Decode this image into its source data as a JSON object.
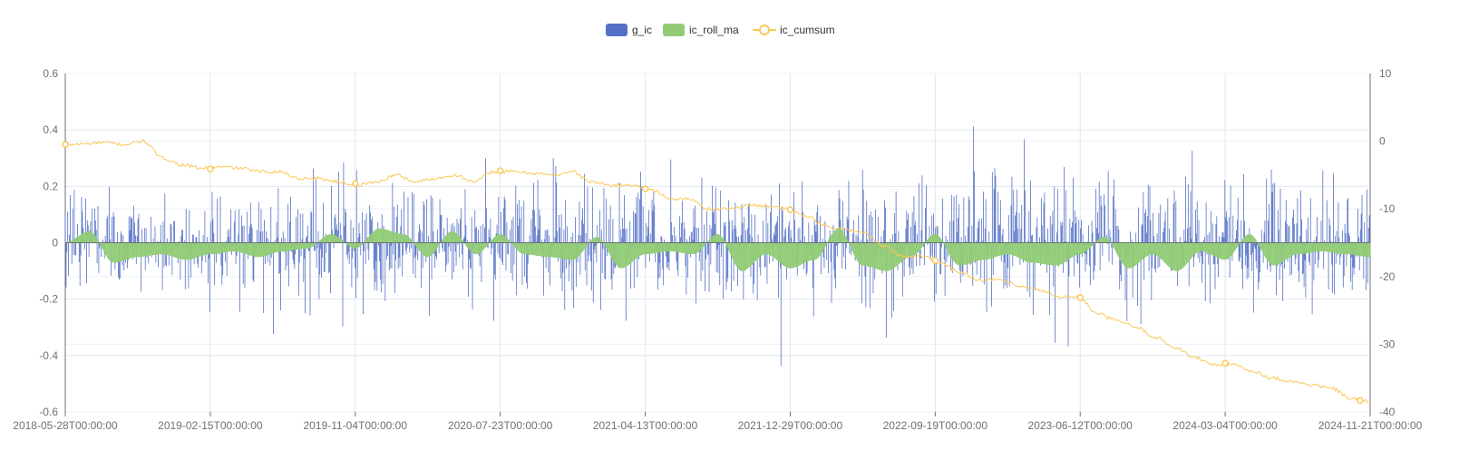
{
  "chart_data": {
    "type": "bar",
    "title": "",
    "xlabel": "",
    "ylabel": "",
    "legend_position": "top-center",
    "ylim_left": [
      -0.6,
      0.6
    ],
    "ylim_right": [
      -40,
      10
    ],
    "y_ticks_left": [
      "0.6",
      "0.4",
      "0.2",
      "0",
      "-0.2",
      "-0.4",
      "-0.6"
    ],
    "y_ticks_right": [
      "10",
      "0",
      "-10",
      "-20",
      "-30",
      "-40"
    ],
    "x_ticks": [
      "2018-05-28T00:00:00",
      "2019-02-15T00:00:00",
      "2019-11-04T00:00:00",
      "2020-07-23T00:00:00",
      "2021-04-13T00:00:00",
      "2021-12-29T00:00:00",
      "2022-09-19T00:00:00",
      "2023-06-12T00:00:00",
      "2024-03-04T00:00:00",
      "2024-11-21T00:00:00"
    ],
    "n_points": 1600,
    "series": [
      {
        "name": "g_ic",
        "kind": "bar",
        "axis": "left",
        "color": "#5470c6",
        "sampled": true,
        "amplitude_profile": [
          0.24,
          0.22,
          0.2,
          0.22,
          0.24,
          0.24,
          0.24,
          0.26,
          0.28,
          0.26,
          0.26,
          0.26,
          0.26,
          0.28,
          0.3,
          0.26,
          0.28,
          0.26,
          0.26,
          0.26
        ]
      },
      {
        "name": "ic_roll_ma",
        "kind": "area",
        "axis": "left",
        "color": "#91cc75",
        "sampled": true,
        "values": [
          0.0,
          0.04,
          -0.07,
          -0.05,
          -0.04,
          -0.06,
          -0.04,
          -0.03,
          -0.05,
          -0.03,
          -0.02,
          0.03,
          -0.02,
          0.05,
          0.03,
          -0.05,
          0.04,
          -0.04,
          0.03,
          -0.04,
          -0.05,
          -0.06,
          0.02,
          -0.09,
          -0.04,
          -0.03,
          -0.04,
          0.03,
          -0.1,
          -0.04,
          -0.09,
          -0.06,
          0.05,
          -0.08,
          -0.1,
          -0.05,
          0.03,
          -0.08,
          -0.06,
          -0.04,
          -0.07,
          -0.08,
          -0.04,
          0.02,
          -0.09,
          -0.04,
          -0.1,
          -0.03,
          -0.06,
          0.03,
          -0.08,
          -0.04,
          -0.03,
          -0.04,
          -0.05
        ]
      },
      {
        "name": "ic_cumsum",
        "kind": "line",
        "axis": "right",
        "color": "#fac858",
        "sampled": true,
        "values": [
          -0.5,
          -0.4,
          -0.2,
          -0.5,
          0.0,
          -2.5,
          -3.5,
          -4.0,
          -3.8,
          -4.0,
          -4.5,
          -4.5,
          -5.5,
          -5.5,
          -6.0,
          -6.5,
          -6.0,
          -5.0,
          -6.0,
          -5.5,
          -5.0,
          -6.0,
          -4.5,
          -4.5,
          -4.7,
          -5.0,
          -4.5,
          -6.0,
          -6.5,
          -6.5,
          -7.0,
          -8.5,
          -8.5,
          -10.0,
          -10.0,
          -9.5,
          -9.5,
          -10.0,
          -11.0,
          -12.5,
          -13.0,
          -13.5,
          -15.5,
          -17.0,
          -17.0,
          -18.0,
          -19.5,
          -20.5,
          -20.5,
          -21.5,
          -22.0,
          -23.0,
          -23.0,
          -25.5,
          -26.5,
          -27.5,
          -29.0,
          -30.5,
          -32.0,
          -33.0,
          -33.0,
          -34.0,
          -35.0,
          -35.5,
          -36.0,
          -36.5,
          -38.0,
          -38.5
        ]
      }
    ]
  }
}
